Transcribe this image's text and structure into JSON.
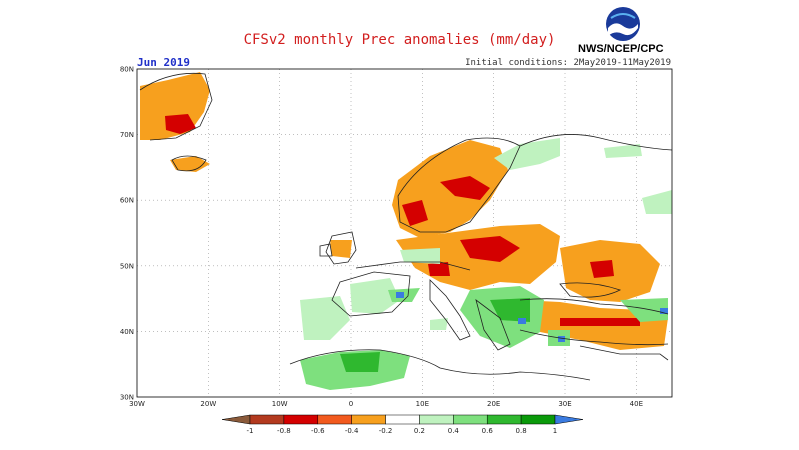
{
  "title": "CFSv2 monthly Prec anomalies (mm/day)",
  "month": "Jun 2019",
  "initial_conditions": "Initial conditions: 2May2019-11May2019",
  "agency": "NWS/NCEP/CPC",
  "logo_icon": "noaa-logo-icon",
  "map": {
    "lon_range": [
      -30,
      45
    ],
    "lat_range": [
      30,
      80
    ],
    "lon_ticks": [
      "30W",
      "20W",
      "10W",
      "0",
      "10E",
      "20E",
      "30E",
      "40E"
    ],
    "lat_ticks": [
      "80N",
      "70N",
      "60N",
      "50N",
      "40N",
      "30N"
    ]
  },
  "colorbar": {
    "labels": [
      "-1",
      "-0.8",
      "-0.6",
      "-0.4",
      "-0.2",
      "0.2",
      "0.4",
      "0.6",
      "0.8",
      "1"
    ],
    "colors": [
      "#b33a1f",
      "#d40000",
      "#f25a1e",
      "#f7a01e",
      "#ffffff",
      "#bff2bf",
      "#7ee07e",
      "#2fb82f",
      "#0a9a0a"
    ],
    "low_color": "#8a5a3a",
    "high_color": "#3a7be0"
  }
}
